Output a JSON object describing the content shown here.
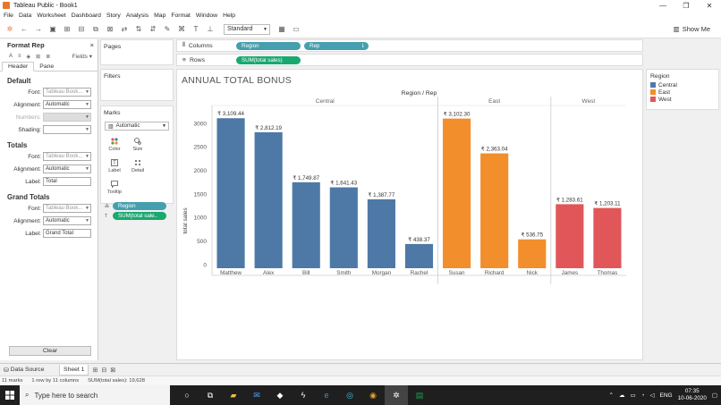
{
  "window": {
    "title": "Tableau Public - Book1",
    "controls": [
      "—",
      "❐",
      "✕"
    ]
  },
  "menu": [
    "File",
    "Data",
    "Worksheet",
    "Dashboard",
    "Story",
    "Analysis",
    "Map",
    "Format",
    "Window",
    "Help"
  ],
  "toolbar": {
    "fit_select": "Standard",
    "show_me": "Show Me"
  },
  "format_pane": {
    "title": "Format Rep",
    "fields_label": "Fields",
    "tabs": [
      "Header",
      "Pane"
    ],
    "default_section": "Default",
    "totals_section": "Totals",
    "grand_totals_section": "Grand Totals",
    "font_label": "Font:",
    "alignment_label": "Alignment:",
    "numbers_label": "Numbers:",
    "shading_label": "Shading:",
    "label_label": "Label:",
    "font_value": "Tableau Book...",
    "alignment_value": "Automatic",
    "totals_label_value": "Total",
    "grand_totals_label_value": "Grand Total",
    "clear_button": "Clear"
  },
  "cards": {
    "pages": "Pages",
    "filters": "Filters",
    "marks": "Marks",
    "marks_type": "Automatic"
  },
  "marks_buttons": [
    "Color",
    "Size",
    "Label",
    "Detail",
    "Tooltip"
  ],
  "marks_pills": [
    "Region",
    "SUM(total sale.."
  ],
  "shelves": {
    "columns_label": "Columns",
    "rows_label": "Rows",
    "columns_pills": [
      "Region",
      "Rep"
    ],
    "rows_pills": [
      "SUM(total sales)"
    ]
  },
  "legend": {
    "title": "Region",
    "items": [
      {
        "label": "Central",
        "color": "#4e79a7"
      },
      {
        "label": "East",
        "color": "#f28e2b"
      },
      {
        "label": "West",
        "color": "#e15759"
      }
    ]
  },
  "chart_data": {
    "type": "bar",
    "title": "ANNUAL TOTAL BONUS",
    "header": "Region / Rep",
    "ylabel": "total sales",
    "ylim": [
      0,
      3250
    ],
    "yticks": [
      0,
      500,
      1000,
      1500,
      2000,
      2500,
      3000
    ],
    "grid": false,
    "legend_position": "right",
    "groups": [
      {
        "name": "Central",
        "color": "#4e79a7",
        "categories": [
          "Matthew",
          "Alex",
          "Bill",
          "Smith",
          "Morgan",
          "Rachel"
        ],
        "values": [
          3109.44,
          2812.19,
          1749.87,
          1641.43,
          1387.77,
          438.37
        ],
        "labels": [
          "₹ 3,109.44",
          "₹ 2,812.19",
          "₹ 1,749.87",
          "₹ 1,641.43",
          "₹ 1,387.77",
          "₹ 438.37"
        ]
      },
      {
        "name": "East",
        "color": "#f28e2b",
        "categories": [
          "Susan",
          "Richard",
          "Nick"
        ],
        "values": [
          3102.3,
          2363.04,
          536.75
        ],
        "labels": [
          "₹ 3,102.30",
          "₹ 2,363.04",
          "₹ 536.75"
        ]
      },
      {
        "name": "West",
        "color": "#e15759",
        "categories": [
          "James",
          "Thomas"
        ],
        "values": [
          1283.61,
          1203.11
        ],
        "labels": [
          "₹ 1,283.61",
          "₹ 1,203.11"
        ]
      }
    ]
  },
  "sheets": {
    "data_source": "Data Source",
    "active": "Sheet 1"
  },
  "status": [
    "11 marks",
    "1 row by 11 columns",
    "SUM(total sales): 19,628"
  ],
  "taskbar": {
    "search_placeholder": "Type here to search",
    "lang": "ENG",
    "time": "07:35",
    "date": "10-06-2020"
  }
}
